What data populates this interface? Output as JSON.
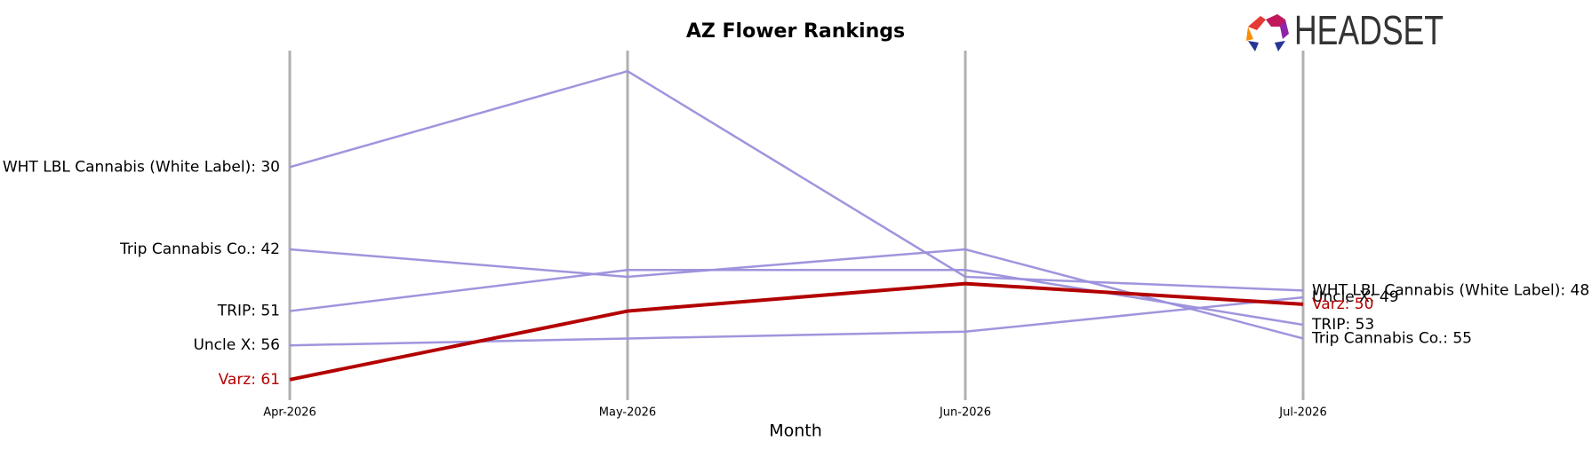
{
  "chart_data": {
    "type": "line",
    "title": "AZ Flower Rankings",
    "x_label": "Month",
    "logo_text": "HEADSET",
    "categories": [
      "Apr-2026",
      "May-2026",
      "Jun-2026",
      "Jul-2026"
    ],
    "ylim": [
      64,
      13
    ],
    "series": [
      {
        "color": "#9a8fdb",
        "values": [
          30,
          16,
          46,
          48
        ],
        "value_labels": [
          "WHT LBL Cannabis (White Label): 30",
          null,
          null,
          "WHT LBL Cannabis (White Label): 48"
        ]
      },
      {
        "color": "#9a8fdb",
        "values": [
          42,
          46,
          42,
          55
        ],
        "value_labels": [
          "Trip Cannabis Co.: 42",
          null,
          null,
          "Trip Cannabis Co.: 55"
        ]
      },
      {
        "color": "#9a8fdb",
        "values": [
          51,
          45,
          45,
          53
        ],
        "value_labels": [
          "TRIP: 51",
          null,
          null,
          "TRIP: 53"
        ]
      },
      {
        "color": "#9a8fdb",
        "values": [
          56,
          55,
          54,
          49
        ],
        "value_labels": [
          "Uncle X: 56",
          null,
          null,
          "Uncle X: 49"
        ]
      },
      {
        "color": "#b30000",
        "emphasis": true,
        "values": [
          61,
          51,
          47,
          50
        ],
        "value_labels": [
          "Varz: 61",
          null,
          null,
          "Varz: 50"
        ]
      }
    ]
  }
}
